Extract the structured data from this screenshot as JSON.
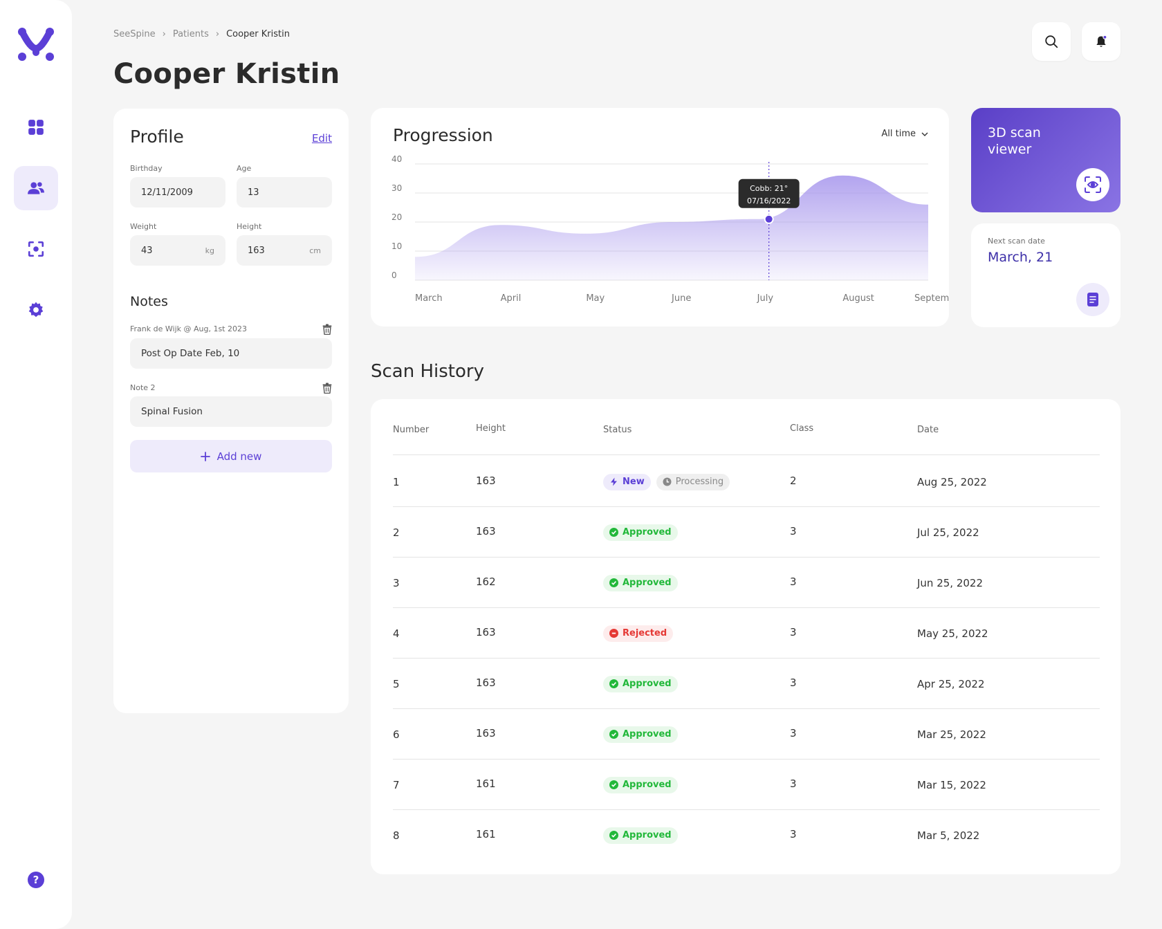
{
  "breadcrumb": [
    "SeeSpine",
    "Patients",
    "Cooper Kristin"
  ],
  "page_title": "Cooper Kristin",
  "profile": {
    "title": "Profile",
    "edit_label": "Edit",
    "birthday_label": "Birthday",
    "birthday": "12/11/2009",
    "age_label": "Age",
    "age": "13",
    "weight_label": "Weight",
    "weight": "43",
    "weight_unit": "kg",
    "height_label": "Height",
    "height": "163",
    "height_unit": "cm"
  },
  "notes": {
    "title": "Notes",
    "items": [
      {
        "label": "Frank de Wijk @ Aug, 1st 2023",
        "value": "Post Op Date Feb, 10"
      },
      {
        "label": "Note 2",
        "value": "Spinal Fusion"
      }
    ],
    "add_label": "Add new"
  },
  "progression": {
    "title": "Progression",
    "range_label": "All time",
    "tooltip_line1": "Cobb: 21°",
    "tooltip_line2": "07/16/2022"
  },
  "chart_data": {
    "type": "area",
    "x": [
      "March",
      "April",
      "May",
      "June",
      "July",
      "August",
      "September"
    ],
    "yticks": [
      0,
      10,
      20,
      30,
      40
    ],
    "ylim": [
      0,
      40
    ],
    "series": [
      {
        "values": [
          8,
          19,
          16,
          20,
          21,
          36,
          26
        ]
      }
    ],
    "grid": true,
    "highlight": {
      "date": "07/16/2022",
      "value": 21
    }
  },
  "viewer": {
    "title": "3D scan viewer"
  },
  "next_scan": {
    "label": "Next scan date",
    "value": "March, 21"
  },
  "history": {
    "title": "Scan History",
    "columns": [
      "Number",
      "Height",
      "Status",
      "Class",
      "Date"
    ],
    "rows": [
      {
        "number": "1",
        "height": "163",
        "status": [
          "New",
          "Processing"
        ],
        "class": "2",
        "date": "Aug 25, 2022"
      },
      {
        "number": "2",
        "height": "163",
        "status": [
          "Approved"
        ],
        "class": "3",
        "date": "Jul 25, 2022"
      },
      {
        "number": "3",
        "height": "162",
        "status": [
          "Approved"
        ],
        "class": "3",
        "date": "Jun 25, 2022"
      },
      {
        "number": "4",
        "height": "163",
        "status": [
          "Rejected"
        ],
        "class": "3",
        "date": "May 25, 2022"
      },
      {
        "number": "5",
        "height": "163",
        "status": [
          "Approved"
        ],
        "class": "3",
        "date": "Apr 25, 2022"
      },
      {
        "number": "6",
        "height": "163",
        "status": [
          "Approved"
        ],
        "class": "3",
        "date": "Mar 25, 2022"
      },
      {
        "number": "7",
        "height": "161",
        "status": [
          "Approved"
        ],
        "class": "3",
        "date": "Mar 15, 2022"
      },
      {
        "number": "8",
        "height": "161",
        "status": [
          "Approved"
        ],
        "class": "3",
        "date": "Mar 5, 2022"
      }
    ]
  },
  "colors": {
    "accent": "#5b3fd6",
    "approved": "#22b83a",
    "rejected": "#e53935",
    "chart_fill": "#a594ec"
  },
  "icons": {
    "nav": [
      "dashboard-icon",
      "patients-icon",
      "scan-icon",
      "settings-icon"
    ],
    "top": [
      "search-icon",
      "bell-icon"
    ],
    "help": "?"
  }
}
